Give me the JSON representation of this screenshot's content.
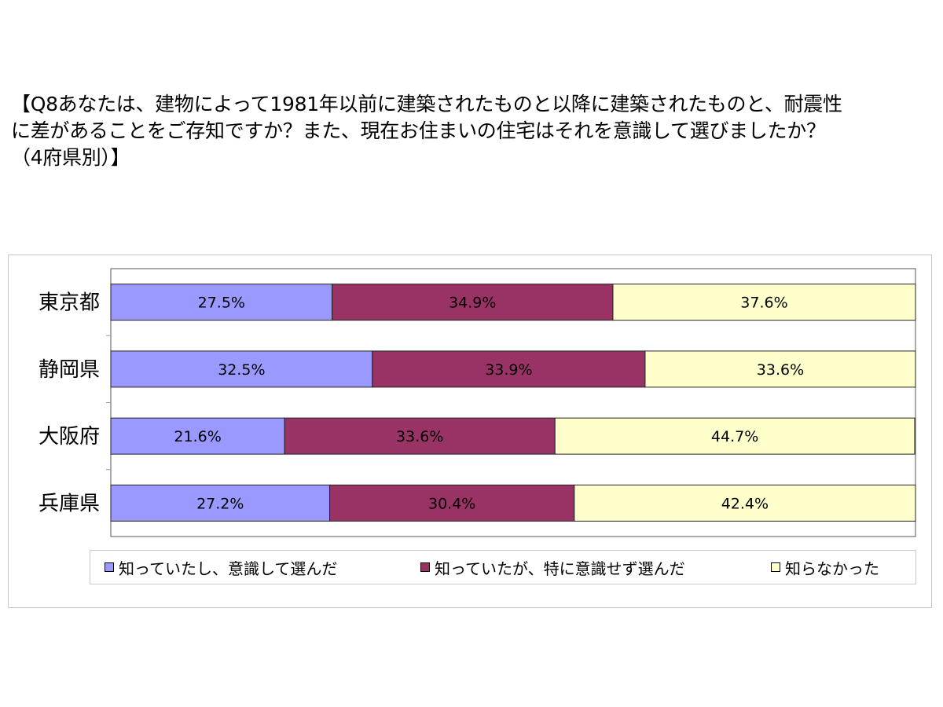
{
  "question": {
    "line1": "【Q8あなたは、建物によって1981年以前に建築されたものと以降に建築されたものと、耐震性",
    "line2": "に差があることをご存知ですか？また、現在お住まいの住宅はそれを意識して選びましたか？",
    "line3": "（4府県別）】"
  },
  "chart_data": {
    "type": "bar",
    "orientation": "horizontal",
    "stacked": true,
    "normalized_100_percent": true,
    "categories": [
      "東京都",
      "静岡県",
      "大阪府",
      "兵庫県"
    ],
    "series": [
      {
        "name": "知っていたし、意識して選んだ",
        "values": [
          27.5,
          32.5,
          21.6,
          27.2
        ],
        "labels": [
          "27.5%",
          "32.5%",
          "21.6%",
          "27.2%"
        ],
        "color": "#9999ff"
      },
      {
        "name": "知っていたが、特に意識せず選んだ",
        "values": [
          34.9,
          33.9,
          33.6,
          30.4
        ],
        "labels": [
          "34.9%",
          "33.9%",
          "33.6%",
          "30.4%"
        ],
        "color": "#993366"
      },
      {
        "name": "知らなかった",
        "values": [
          37.6,
          33.6,
          44.7,
          42.4
        ],
        "labels": [
          "37.6%",
          "33.6%",
          "44.7%",
          "42.4%"
        ],
        "color": "#ffffcc"
      }
    ],
    "xlim": [
      0,
      100
    ],
    "legend_position": "bottom",
    "grid": false
  }
}
